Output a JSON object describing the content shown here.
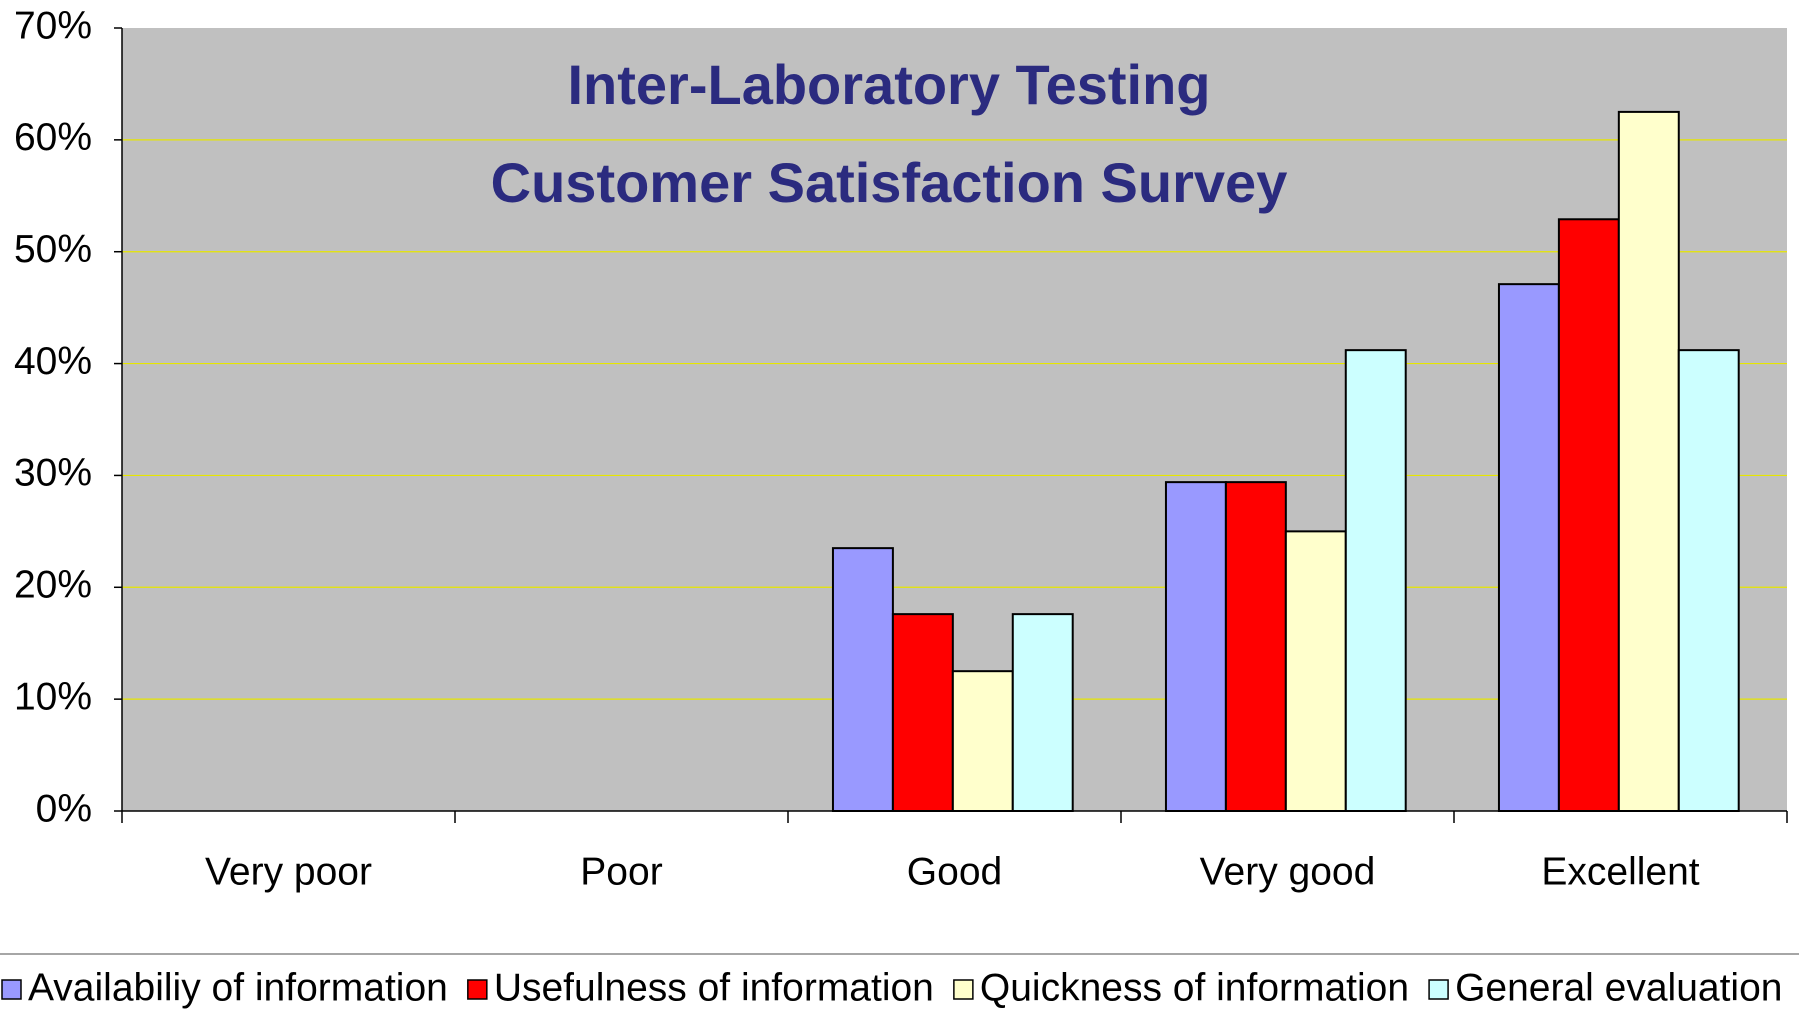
{
  "chart_data": {
    "type": "bar",
    "title": [
      "Inter-Laboratory Testing",
      "Customer Satisfaction Survey"
    ],
    "categories": [
      "Very poor",
      "Poor",
      "Good",
      "Very good",
      "Excellent"
    ],
    "series": [
      {
        "name": "Availabiliy of information",
        "color": "#9999ff",
        "values": [
          0,
          0,
          23.5,
          29.4,
          47.1
        ]
      },
      {
        "name": "Usefulness of information",
        "color": "#ff0000",
        "values": [
          0,
          0,
          17.6,
          29.4,
          52.9
        ]
      },
      {
        "name": "Quickness of information",
        "color": "#ffffcc",
        "values": [
          0,
          0,
          12.5,
          25,
          62.5
        ]
      },
      {
        "name": "General evaluation",
        "color": "#ccffff",
        "values": [
          0,
          0,
          17.6,
          41.2,
          41.2
        ]
      }
    ],
    "ylim": [
      0,
      70
    ],
    "yticks": [
      {
        "value": 0,
        "label": "0%"
      },
      {
        "value": 10,
        "label": "10%"
      },
      {
        "value": 20,
        "label": "20%"
      },
      {
        "value": 30,
        "label": "30%"
      },
      {
        "value": 40,
        "label": "40%"
      },
      {
        "value": 50,
        "label": "50%"
      },
      {
        "value": 60,
        "label": "60%"
      },
      {
        "value": 70,
        "label": "70%"
      }
    ],
    "grid": true,
    "grid_color": "#e6e600",
    "plot_background": "#c0c0c0",
    "legend": "bottom"
  }
}
